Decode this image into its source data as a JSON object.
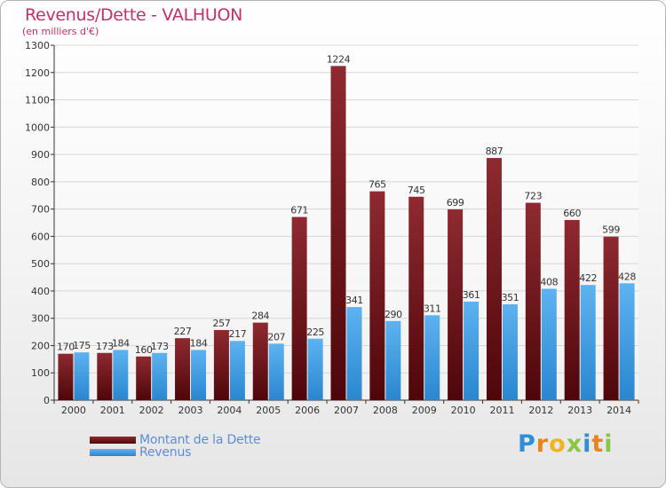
{
  "chart_data": {
    "type": "bar",
    "title": "Revenus/Dette - VALHUON",
    "subtitle": "(en milliers d'€)",
    "categories": [
      "2000",
      "2001",
      "2002",
      "2003",
      "2004",
      "2005",
      "2006",
      "2007",
      "2008",
      "2009",
      "2010",
      "2011",
      "2012",
      "2013",
      "2014"
    ],
    "series": [
      {
        "name": "Montant de la Dette",
        "color": "#6b0f14",
        "values": [
          170,
          173,
          160,
          227,
          257,
          284,
          671,
          1224,
          765,
          745,
          699,
          887,
          723,
          660,
          599
        ]
      },
      {
        "name": "Revenus",
        "color": "#3d9ae0",
        "values": [
          175,
          184,
          173,
          184,
          217,
          207,
          225,
          341,
          290,
          311,
          361,
          351,
          408,
          422,
          428
        ]
      }
    ],
    "ylim": [
      0,
      1300
    ],
    "yticks": [
      0,
      100,
      200,
      300,
      400,
      500,
      600,
      700,
      800,
      900,
      1000,
      1100,
      1200,
      1300
    ],
    "grid": true,
    "legend": "bottom-left"
  },
  "brand": {
    "letters": [
      {
        "char": "P",
        "color": "#2f8fd6"
      },
      {
        "char": "r",
        "color": "#e9831c"
      },
      {
        "char": "o",
        "color": "#f0b41c"
      },
      {
        "char": "x",
        "color": "#8cc63f"
      },
      {
        "char": "i",
        "color": "#2f8fd6"
      },
      {
        "char": "t",
        "color": "#e9831c"
      },
      {
        "char": "i",
        "color": "#8cc63f"
      }
    ]
  }
}
